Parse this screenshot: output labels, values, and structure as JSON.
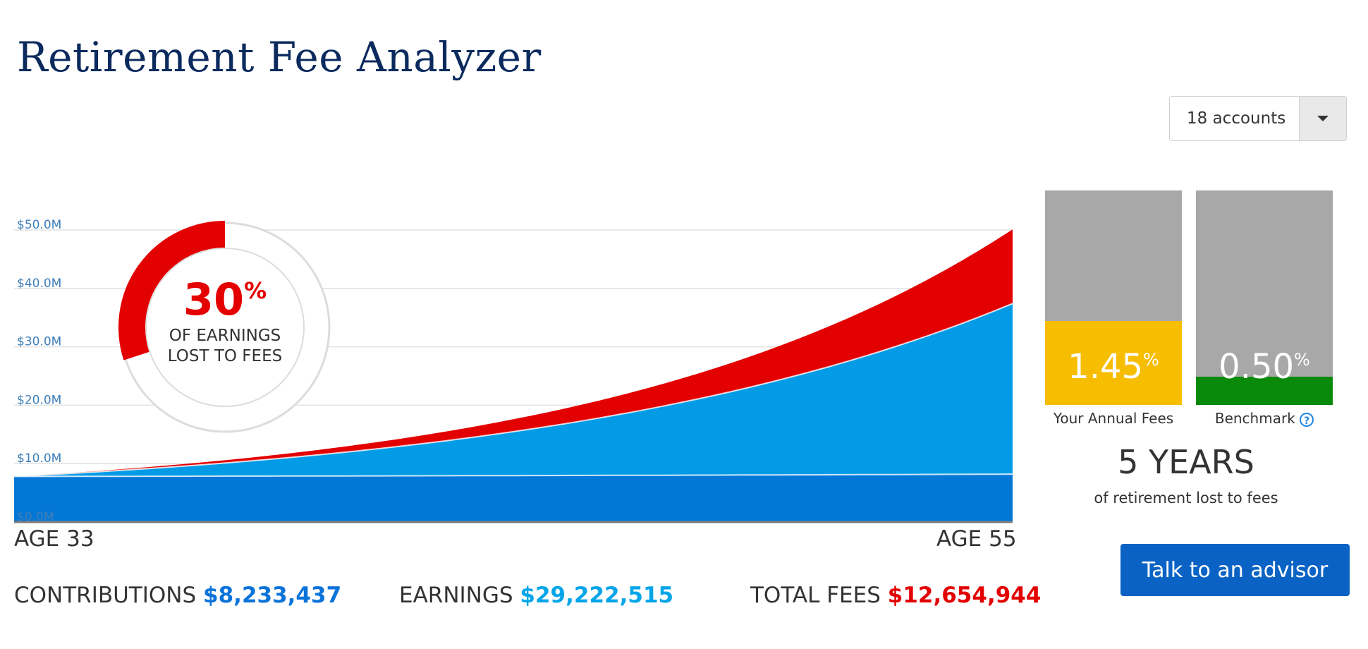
{
  "page": {
    "title": "Retirement Fee Analyzer"
  },
  "account_select": {
    "value": "18 accounts"
  },
  "chart_data": {
    "type": "area",
    "stacked": true,
    "ylim": [
      0,
      50
    ],
    "y_ticks": [
      "$0.0M",
      "$10.0M",
      "$20.0M",
      "$30.0M",
      "$40.0M",
      "$50.0M"
    ],
    "y_tick_values": [
      0,
      10,
      20,
      30,
      40,
      50
    ],
    "x_range_labels": [
      "AGE 33",
      "AGE 55"
    ],
    "x": [
      33,
      55
    ],
    "series": [
      {
        "name": "Contributions",
        "color": "#0277d6",
        "start": 7.8,
        "end": 8.2
      },
      {
        "name": "Earnings",
        "color": "#039be5",
        "start": 7.8,
        "end": 37.4
      },
      {
        "name": "Total Fees",
        "color": "#e30000",
        "start": 7.8,
        "end": 50.1
      }
    ],
    "grid": true
  },
  "donut": {
    "percent": 30,
    "percent_text": "30",
    "suffix": "%",
    "caption_line1": "OF EARNINGS",
    "caption_line2": "LOST TO FEES"
  },
  "fees": {
    "yours": {
      "value": "1.45",
      "suffix": "%",
      "fill_fraction": 0.39,
      "label": "Your Annual Fees",
      "color": "#f7bd00"
    },
    "benchmark": {
      "value": "0.50",
      "suffix": "%",
      "fill_fraction": 0.13,
      "label": "Benchmark",
      "color": "#0a8a0a",
      "help_icon": "?"
    }
  },
  "years_lost": {
    "value": "5 YEARS",
    "caption": "of retirement lost to fees"
  },
  "cta": {
    "label": "Talk to an advisor"
  },
  "summary": {
    "contributions": {
      "label": "CONTRIBUTIONS",
      "value": "$8,233,437",
      "color": "#0a73d9"
    },
    "earnings": {
      "label": "EARNINGS",
      "value": "$29,222,515",
      "color": "#03a5e8"
    },
    "total_fees": {
      "label": "TOTAL FEES",
      "value": "$12,654,944",
      "color": "#e30000"
    }
  }
}
